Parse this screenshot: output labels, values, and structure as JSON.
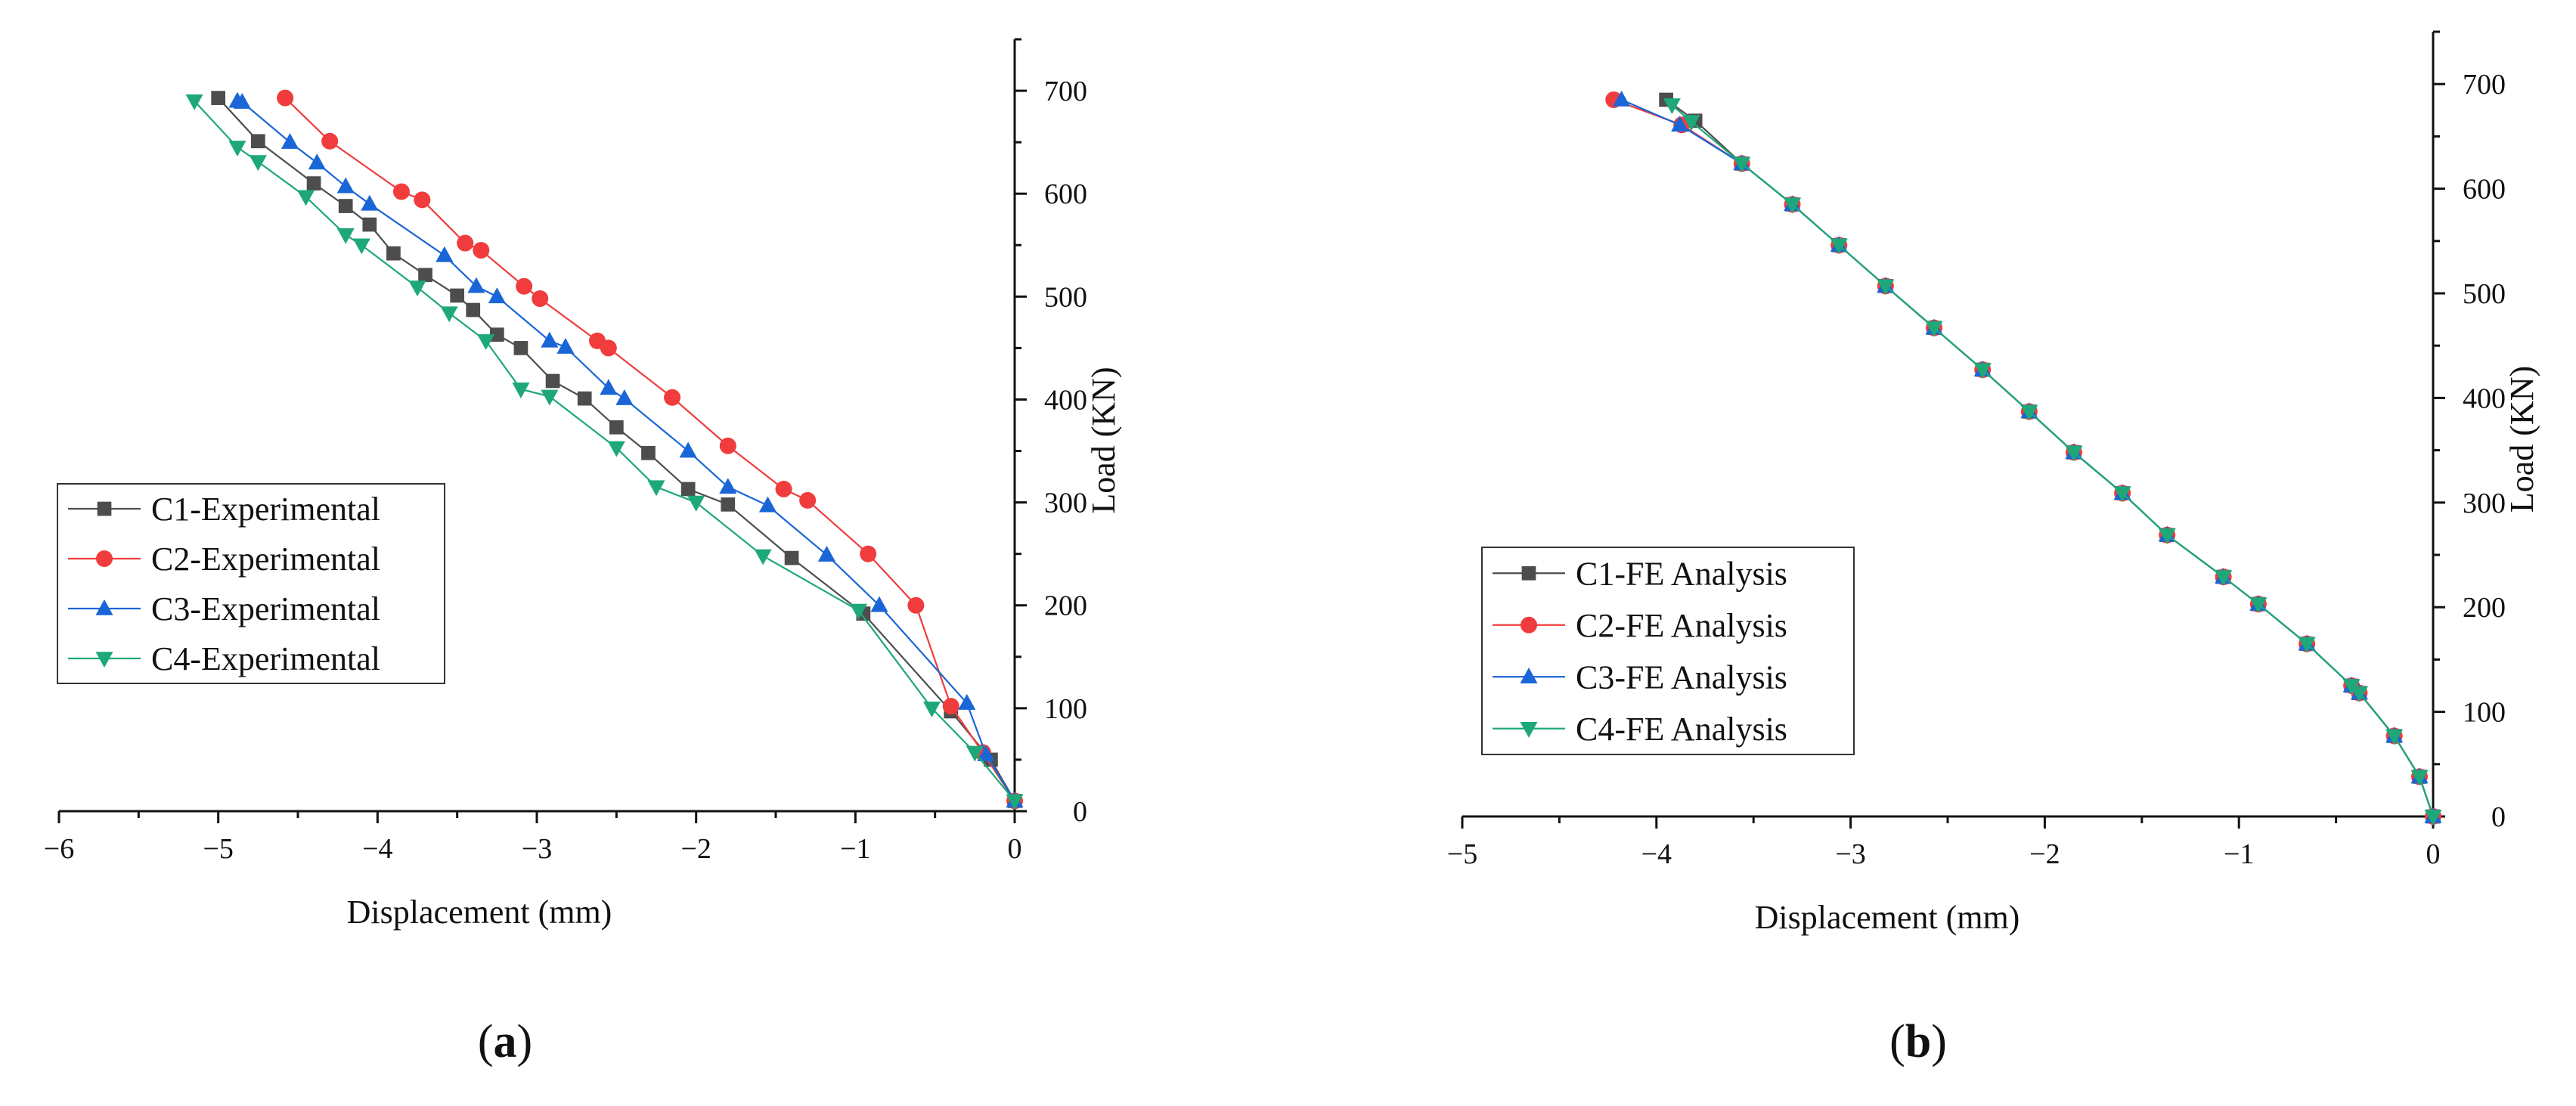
{
  "chart_data": [
    {
      "type": "line",
      "panel_label": "(a)",
      "panel_letter": "a",
      "xlabel": "Displacement (mm)",
      "ylabel": "Load (KN)",
      "xlim": [
        -6,
        0
      ],
      "ylim": [
        0,
        750
      ],
      "xticks": [
        -6,
        -5,
        -4,
        -3,
        -2,
        -1,
        0
      ],
      "yticks": [
        0,
        100,
        200,
        300,
        400,
        500,
        600,
        700
      ],
      "legend_position": "left",
      "series": [
        {
          "name": "C1-Experimental",
          "color": "#4d4d4d",
          "marker": "square",
          "x": [
            0,
            -0.15,
            -0.4,
            -0.95,
            -1.4,
            -1.8,
            -2.05,
            -2.3,
            -2.5,
            -2.7,
            -2.9,
            -3.1,
            -3.25,
            -3.4,
            -3.5,
            -3.7,
            -3.9,
            -4.05,
            -4.2,
            -4.4,
            -4.75,
            -5.0
          ],
          "y": [
            10,
            50,
            97,
            192,
            246,
            298,
            313,
            348,
            373,
            401,
            418,
            450,
            463,
            487,
            501,
            521,
            542,
            570,
            588,
            610,
            651,
            693
          ]
        },
        {
          "name": "C2-Experimental",
          "color": "#f03c3c",
          "marker": "circle",
          "x": [
            0,
            -0.2,
            -0.4,
            -0.62,
            -0.92,
            -1.3,
            -1.45,
            -1.8,
            -2.15,
            -2.55,
            -2.62,
            -2.98,
            -3.08,
            -3.35,
            -3.45,
            -3.72,
            -3.85,
            -4.3,
            -4.58
          ],
          "y": [
            10,
            57,
            102,
            200,
            250,
            302,
            313,
            355,
            402,
            450,
            457,
            498,
            510,
            545,
            552,
            594,
            602,
            651,
            693
          ]
        },
        {
          "name": "C3-Experimental",
          "color": "#1a66d6",
          "marker": "triangle-up",
          "x": [
            0,
            -0.18,
            -0.3,
            -0.85,
            -1.18,
            -1.55,
            -1.8,
            -2.05,
            -2.45,
            -2.55,
            -2.82,
            -2.92,
            -3.25,
            -3.38,
            -3.58,
            -4.05,
            -4.2,
            -4.38,
            -4.55,
            -4.85,
            -4.88
          ],
          "y": [
            10,
            55,
            105,
            200,
            249,
            297,
            315,
            350,
            401,
            411,
            451,
            457,
            500,
            510,
            540,
            590,
            607,
            630,
            650,
            689,
            690
          ]
        },
        {
          "name": "C4-Experimental",
          "color": "#1ea87a",
          "marker": "triangle-down",
          "x": [
            0,
            -0.25,
            -0.52,
            -0.98,
            -1.58,
            -2.0,
            -2.25,
            -2.5,
            -2.92,
            -3.1,
            -3.32,
            -3.55,
            -3.75,
            -4.1,
            -4.2,
            -4.45,
            -4.75,
            -4.88,
            -5.15
          ],
          "y": [
            10,
            57,
            100,
            195,
            248,
            300,
            315,
            353,
            403,
            410,
            457,
            484,
            509,
            550,
            560,
            597,
            631,
            645,
            690
          ]
        }
      ]
    },
    {
      "type": "line",
      "panel_label": "(b)",
      "panel_letter": "b",
      "xlabel": "Displacement (mm)",
      "ylabel": "Load (KN)",
      "xlim": [
        -5,
        0
      ],
      "ylim": [
        0,
        750
      ],
      "xticks": [
        -5,
        -4,
        -3,
        -2,
        -1,
        0
      ],
      "yticks": [
        0,
        100,
        200,
        300,
        400,
        500,
        600,
        700
      ],
      "legend_position": "left",
      "series": [
        {
          "name": "C1-FE Analysis",
          "color": "#4d4d4d",
          "marker": "square",
          "x": [
            0,
            -0.07,
            -0.2,
            -0.38,
            -0.42,
            -0.65,
            -0.9,
            -1.08,
            -1.37,
            -1.6,
            -1.85,
            -2.08,
            -2.32,
            -2.57,
            -2.82,
            -3.06,
            -3.3,
            -3.56,
            -3.8,
            -3.95
          ],
          "y": [
            0,
            38,
            77,
            118,
            125,
            165,
            203,
            229,
            269,
            309,
            348,
            387,
            427,
            467,
            507,
            546,
            585,
            624,
            665,
            685
          ]
        },
        {
          "name": "C2-FE Analysis",
          "color": "#f03c3c",
          "marker": "circle",
          "x": [
            0,
            -0.07,
            -0.2,
            -0.38,
            -0.42,
            -0.65,
            -0.9,
            -1.08,
            -1.37,
            -1.6,
            -1.85,
            -2.08,
            -2.32,
            -2.57,
            -2.82,
            -3.06,
            -3.3,
            -3.56,
            -3.87,
            -4.22
          ],
          "y": [
            0,
            38,
            77,
            118,
            125,
            165,
            203,
            229,
            269,
            309,
            348,
            387,
            427,
            467,
            507,
            546,
            585,
            624,
            661,
            685
          ]
        },
        {
          "name": "C3-FE Analysis",
          "color": "#1a66d6",
          "marker": "triangle-up",
          "x": [
            0,
            -0.07,
            -0.2,
            -0.38,
            -0.42,
            -0.65,
            -0.9,
            -1.08,
            -1.37,
            -1.6,
            -1.85,
            -2.08,
            -2.32,
            -2.57,
            -2.82,
            -3.06,
            -3.3,
            -3.56,
            -3.88,
            -4.18
          ],
          "y": [
            0,
            38,
            77,
            118,
            125,
            165,
            203,
            229,
            269,
            309,
            348,
            387,
            427,
            467,
            507,
            546,
            585,
            624,
            661,
            685
          ]
        },
        {
          "name": "C4-FE Analysis",
          "color": "#1ea87a",
          "marker": "triangle-down",
          "x": [
            0,
            -0.07,
            -0.2,
            -0.38,
            -0.42,
            -0.65,
            -0.9,
            -1.08,
            -1.37,
            -1.6,
            -1.85,
            -2.08,
            -2.32,
            -2.57,
            -2.82,
            -3.06,
            -3.3,
            -3.56,
            -3.82,
            -3.92
          ],
          "y": [
            0,
            38,
            77,
            118,
            125,
            165,
            203,
            229,
            269,
            309,
            348,
            387,
            427,
            467,
            507,
            546,
            585,
            624,
            664,
            680
          ]
        }
      ]
    }
  ]
}
